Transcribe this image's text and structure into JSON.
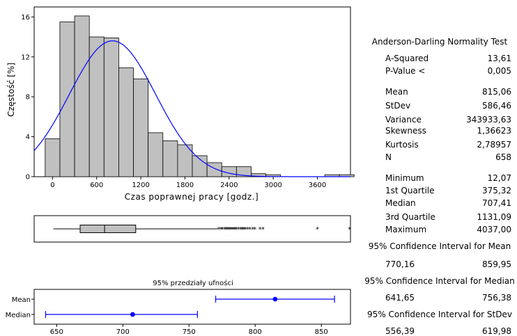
{
  "chart_data": [
    {
      "type": "bar",
      "name": "histogram",
      "xlabel": "Czas poprawnej pracy [godz.]",
      "ylabel": "Częstość [%]",
      "bin_width": 200,
      "bins_start": [
        -100,
        100,
        300,
        500,
        700,
        900,
        1100,
        1300,
        1500,
        1700,
        1900,
        2100,
        2300,
        2500,
        2700,
        2900,
        3100,
        3300,
        3500,
        3700,
        3900
      ],
      "values": [
        3.8,
        15.5,
        16.1,
        14.0,
        13.9,
        10.9,
        9.8,
        4.4,
        3.6,
        3.2,
        2.1,
        1.4,
        1.0,
        1.0,
        0.3,
        0.2,
        0.0,
        0.0,
        0.0,
        0.2,
        0.2
      ],
      "xlim": [
        -250,
        4050
      ],
      "ylim": [
        0,
        17
      ],
      "xticks": [
        0,
        600,
        1200,
        1800,
        2400,
        3000,
        3600
      ],
      "yticks": [
        0,
        4,
        8,
        12,
        16
      ],
      "normal_curve": {
        "mean": 815.06,
        "stdev": 586.46,
        "color": "#0000ff"
      },
      "bar_color": "#c0c0c0"
    },
    {
      "type": "boxplot",
      "name": "boxplot",
      "whisker_min": 12.07,
      "q1": 375.32,
      "median": 707.41,
      "q3": 1131.09,
      "whisker_max": 2250,
      "outliers": [
        2260,
        2290,
        2310,
        2340,
        2360,
        2380,
        2400,
        2420,
        2440,
        2460,
        2480,
        2500,
        2530,
        2560,
        2580,
        2600,
        2620,
        2650,
        2680,
        2720,
        2750,
        2820,
        2860,
        3600,
        4037
      ]
    },
    {
      "type": "interval",
      "name": "confidence-intervals",
      "title": "95% przedziały ufności",
      "categories": [
        "Mean",
        "Median"
      ],
      "estimates": [
        815.06,
        707.41
      ],
      "lower": [
        770.16,
        641.65
      ],
      "upper": [
        859.95,
        756.38
      ],
      "xlim": [
        633,
        872
      ],
      "xticks": [
        650,
        700,
        750,
        800,
        850
      ],
      "color": "#0000ff"
    }
  ],
  "stats": {
    "test_title": "Anderson-Darling Normality Test",
    "rows": [
      {
        "label": "A-Squared",
        "value": "13,61"
      },
      {
        "label": "P-Value <",
        "value": "0,005"
      },
      {
        "label": "Mean",
        "value": "815,06"
      },
      {
        "label": "StDev",
        "value": "586,46"
      },
      {
        "label": "Variance",
        "value": "343933,63"
      },
      {
        "label": "Skewness",
        "value": "1,36623"
      },
      {
        "label": "Kurtosis",
        "value": "2,78957"
      },
      {
        "label": "N",
        "value": "658"
      },
      {
        "label": "Minimum",
        "value": "12,07"
      },
      {
        "label": "1st Quartile",
        "value": "375,32"
      },
      {
        "label": "Median",
        "value": "707,41"
      },
      {
        "label": "3rd Quartile",
        "value": "1131,09"
      },
      {
        "label": "Maximum",
        "value": "4037,00"
      }
    ],
    "ci_mean_title": "95% Confidence Interval for Mean",
    "ci_mean_lo": "770,16",
    "ci_mean_hi": "859,95",
    "ci_median_title": "95% Confidence Interval for Median",
    "ci_median_lo": "641,65",
    "ci_median_hi": "756,38",
    "ci_stdev_title": "95% Confidence Interval for StDev",
    "ci_stdev_lo": "556,39",
    "ci_stdev_hi": "619,98"
  }
}
